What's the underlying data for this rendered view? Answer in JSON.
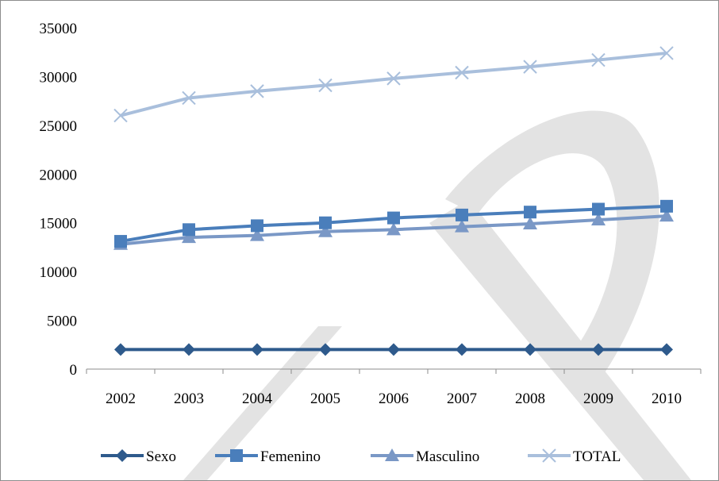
{
  "chart_data": {
    "type": "line",
    "title": "",
    "xlabel": "",
    "ylabel": "",
    "categories": [
      "2002",
      "2003",
      "2004",
      "2005",
      "2006",
      "2007",
      "2008",
      "2009",
      "2010"
    ],
    "ylim": [
      0,
      35000
    ],
    "yticks": [
      0,
      5000,
      10000,
      15000,
      20000,
      25000,
      30000,
      35000
    ],
    "grid": false,
    "legend_position": "bottom",
    "series": [
      {
        "name": "Sexo",
        "color": "#2e5a8c",
        "marker": "diamond",
        "values": [
          2000,
          2000,
          2000,
          2000,
          2000,
          2000,
          2000,
          2000,
          2000
        ]
      },
      {
        "name": "Femenino",
        "color": "#4a7ebb",
        "marker": "square",
        "values": [
          13100,
          14300,
          14700,
          15000,
          15500,
          15800,
          16100,
          16400,
          16700
        ]
      },
      {
        "name": "Masculino",
        "color": "#7a98c6",
        "marker": "triangle",
        "values": [
          12800,
          13500,
          13700,
          14100,
          14300,
          14600,
          14900,
          15300,
          15700
        ]
      },
      {
        "name": "TOTAL",
        "color": "#a9bfdc",
        "marker": "x",
        "values": [
          26000,
          27800,
          28500,
          29100,
          29800,
          30400,
          31000,
          31700,
          32400
        ]
      }
    ]
  },
  "watermark": {
    "color": "#e3e3e3"
  }
}
